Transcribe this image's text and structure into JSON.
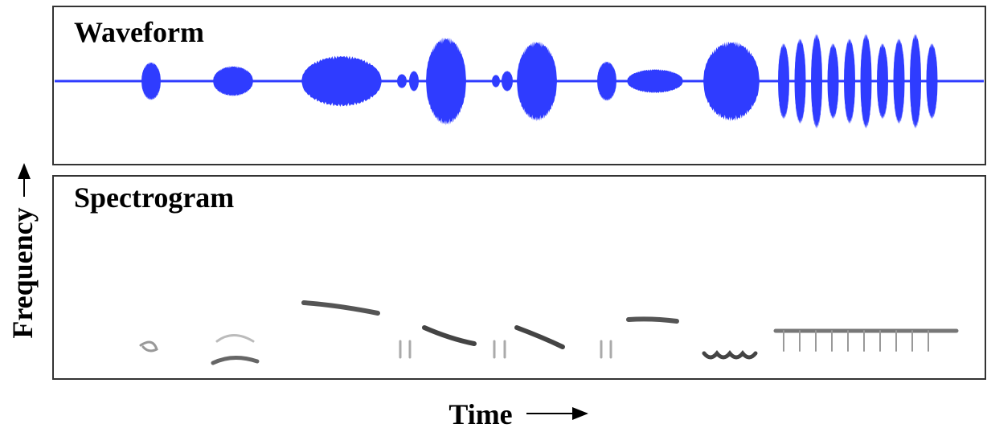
{
  "panels": {
    "waveform": {
      "title": "Waveform"
    },
    "spectrogram": {
      "title": "Spectrogram"
    }
  },
  "axes": {
    "y_label": "Frequency",
    "x_label": "Time"
  }
}
